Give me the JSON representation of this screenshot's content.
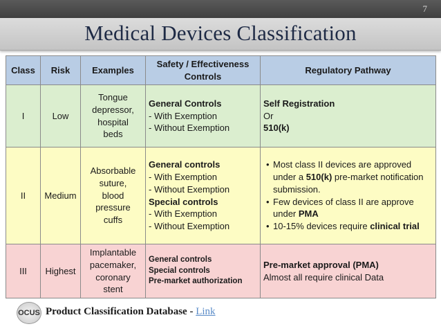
{
  "slide_number": "7",
  "title": "Medical Devices Classification",
  "table": {
    "headers": [
      "Class",
      "Risk",
      "Examples",
      "Safety / Effectiveness Controls",
      "Regulatory Pathway"
    ],
    "rows": [
      {
        "class": "I",
        "risk": "Low",
        "examples": [
          "Tongue",
          "depressor,",
          "hospital",
          "beds"
        ],
        "controls": {
          "bold": "General Controls",
          "lines": [
            "- With Exemption",
            "- Without Exemption"
          ]
        },
        "pathway": {
          "line1": "Self Registration",
          "line2": "Or",
          "line3": "510(k)"
        }
      },
      {
        "class": "II",
        "risk": "Medium",
        "examples": [
          "Absorbable",
          "suture,",
          "blood",
          "pressure",
          "cuffs"
        ],
        "controls": {
          "bold1": "General controls",
          "lines1": [
            "- With Exemption",
            "- Without Exemption"
          ],
          "bold2": "Special controls",
          "lines2": [
            "- With Exemption",
            "- Without Exemption"
          ]
        },
        "pathway": {
          "b1_pre": "Most class II devices are approved under a ",
          "b1_bold": "510(k)",
          "b1_post": " pre-market notification submission.",
          "b2_pre": "Few devices of class II are approve under ",
          "b2_bold": "PMA",
          "b3_pre": "10-15% devices require ",
          "b3_bold": "clinical trial"
        }
      },
      {
        "class": "III",
        "risk": "Highest",
        "examples": [
          "Implantable",
          "pacemaker,",
          "coronary",
          "stent"
        ],
        "controls": {
          "lines": [
            "General controls",
            "Special controls",
            "Pre-market authorization"
          ]
        },
        "pathway": {
          "bold": "Pre-market approval (PMA)",
          "line": "Almost all require clinical Data"
        }
      }
    ]
  },
  "footer": {
    "logo_text": "OCUS",
    "label": "Product Classification Database - ",
    "link": "Link"
  }
}
